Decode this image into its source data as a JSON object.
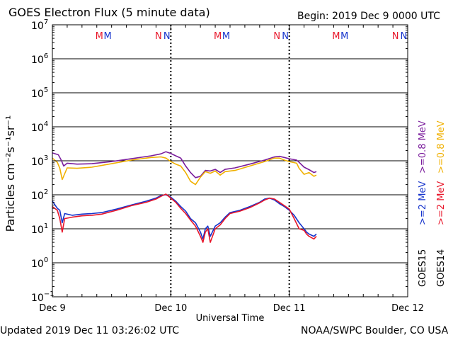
{
  "header": {
    "title": "GOES Electron Flux (5 minute data)",
    "begin": "Begin: 2019 Dec 9 0000 UTC"
  },
  "footer": {
    "updated": "Updated 2019 Dec 11 03:26:02 UTC",
    "credit": "NOAA/SWPC Boulder, CO USA"
  },
  "chart_data": {
    "type": "line",
    "title": "GOES Electron Flux (5 minute data)",
    "xlabel": "Universal Time",
    "ylabel": "Particles cm⁻²s⁻¹sr⁻¹",
    "yscale": "log",
    "ylim_exp": [
      -1,
      7
    ],
    "xlim_hours": [
      0,
      72
    ],
    "x_ticks": [
      {
        "hour": 0,
        "label": "Dec 9"
      },
      {
        "hour": 24,
        "label": "Dec 10"
      },
      {
        "hour": 48,
        "label": "Dec 11"
      },
      {
        "hour": 72,
        "label": "Dec 12"
      }
    ],
    "y_ticks": [
      {
        "exp": 7,
        "label": "7"
      },
      {
        "exp": 6,
        "label": "6"
      },
      {
        "exp": 5,
        "label": "5"
      },
      {
        "exp": 4,
        "label": "4"
      },
      {
        "exp": 3,
        "label": "3"
      },
      {
        "exp": 2,
        "label": "2"
      },
      {
        "exp": 1,
        "label": "1"
      },
      {
        "exp": 0,
        "label": "0"
      },
      {
        "exp": -1,
        "label": "−1"
      }
    ],
    "y_base": "10",
    "threshold": {
      "value": 1000,
      "style": "dashed"
    },
    "markers": [
      {
        "hour": 9.5,
        "label": "M",
        "color": "#e8162a"
      },
      {
        "hour": 11.2,
        "label": "M",
        "color": "#1533cc"
      },
      {
        "hour": 21.5,
        "label": "N",
        "color": "#e8162a"
      },
      {
        "hour": 23.2,
        "label": "N",
        "color": "#1533cc"
      },
      {
        "hour": 33.5,
        "label": "M",
        "color": "#e8162a"
      },
      {
        "hour": 35.2,
        "label": "M",
        "color": "#1533cc"
      },
      {
        "hour": 45.5,
        "label": "N",
        "color": "#e8162a"
      },
      {
        "hour": 47.2,
        "label": "N",
        "color": "#1533cc"
      },
      {
        "hour": 57.5,
        "label": "M",
        "color": "#e8162a"
      },
      {
        "hour": 59.2,
        "label": "M",
        "color": "#1533cc"
      },
      {
        "hour": 69.5,
        "label": "N",
        "color": "#e8162a"
      },
      {
        "hour": 71.2,
        "label": "N",
        "color": "#1533cc"
      }
    ],
    "legend": {
      "placement": "right",
      "label_15": "GOES15",
      "label_14": "GOES14",
      "entries": [
        {
          "text": ">=0.8 MeV",
          "color": "#f0b000",
          "satellite": "GOES14"
        },
        {
          "text": ">=0.8 MeV",
          "color": "#7a1d9c",
          "satellite": "GOES15"
        },
        {
          "text": ">=2 MeV",
          "color": "#e8162a",
          "satellite": "GOES14"
        },
        {
          "text": ">=2 MeV",
          "color": "#1533cc",
          "satellite": "GOES15"
        }
      ]
    },
    "series": [
      {
        "name": "GOES15 >=0.8 MeV",
        "color": "#7a1d9c",
        "points": [
          [
            0,
            1700
          ],
          [
            1.2,
            1500
          ],
          [
            1.8,
            1050
          ],
          [
            2.3,
            700
          ],
          [
            3,
            850
          ],
          [
            5,
            800
          ],
          [
            8,
            820
          ],
          [
            12,
            950
          ],
          [
            16,
            1150
          ],
          [
            20,
            1400
          ],
          [
            22,
            1600
          ],
          [
            23,
            1850
          ],
          [
            24,
            1650
          ],
          [
            25,
            1400
          ],
          [
            26,
            1200
          ],
          [
            27,
            700
          ],
          [
            28,
            450
          ],
          [
            29,
            320
          ],
          [
            30,
            350
          ],
          [
            31,
            520
          ],
          [
            32,
            500
          ],
          [
            33,
            560
          ],
          [
            34,
            450
          ],
          [
            35,
            560
          ],
          [
            37,
            620
          ],
          [
            40,
            800
          ],
          [
            43,
            1050
          ],
          [
            45,
            1300
          ],
          [
            46,
            1350
          ],
          [
            47,
            1250
          ],
          [
            48,
            1150
          ],
          [
            49.5,
            1050
          ],
          [
            50,
            900
          ],
          [
            51,
            650
          ],
          [
            52,
            550
          ],
          [
            53,
            450
          ],
          [
            53.5,
            480
          ]
        ]
      },
      {
        "name": "GOES14 >=0.8 MeV",
        "color": "#f0b000",
        "points": [
          [
            0,
            1200
          ],
          [
            1,
            900
          ],
          [
            1.5,
            600
          ],
          [
            2,
            280
          ],
          [
            3,
            620
          ],
          [
            5,
            600
          ],
          [
            8,
            650
          ],
          [
            12,
            820
          ],
          [
            16,
            1050
          ],
          [
            20,
            1250
          ],
          [
            22,
            1300
          ],
          [
            23,
            1200
          ],
          [
            24,
            950
          ],
          [
            25,
            800
          ],
          [
            26,
            700
          ],
          [
            27,
            450
          ],
          [
            28,
            250
          ],
          [
            29,
            200
          ],
          [
            30,
            330
          ],
          [
            31,
            480
          ],
          [
            32,
            430
          ],
          [
            33,
            500
          ],
          [
            34,
            380
          ],
          [
            35,
            480
          ],
          [
            37,
            520
          ],
          [
            40,
            700
          ],
          [
            43,
            950
          ],
          [
            45,
            1200
          ],
          [
            46,
            1200
          ],
          [
            47,
            1050
          ],
          [
            48,
            950
          ],
          [
            49.5,
            850
          ],
          [
            50,
            600
          ],
          [
            51,
            400
          ],
          [
            52,
            450
          ],
          [
            53,
            350
          ],
          [
            53.5,
            380
          ]
        ]
      },
      {
        "name": "GOES15 >=2 MeV",
        "color": "#1533cc",
        "points": [
          [
            0,
            65
          ],
          [
            1,
            40
          ],
          [
            1.5,
            35
          ],
          [
            2,
            15
          ],
          [
            2.5,
            28
          ],
          [
            4,
            25
          ],
          [
            6,
            27
          ],
          [
            8,
            28
          ],
          [
            10,
            30
          ],
          [
            13,
            38
          ],
          [
            16,
            50
          ],
          [
            19,
            65
          ],
          [
            21,
            80
          ],
          [
            22,
            95
          ],
          [
            23,
            100
          ],
          [
            24,
            85
          ],
          [
            25,
            65
          ],
          [
            26,
            45
          ],
          [
            27,
            33
          ],
          [
            28,
            20
          ],
          [
            29,
            15
          ],
          [
            30,
            8
          ],
          [
            30.5,
            5
          ],
          [
            31,
            10
          ],
          [
            31.5,
            12
          ],
          [
            32,
            6
          ],
          [
            33,
            12
          ],
          [
            34,
            15
          ],
          [
            35,
            22
          ],
          [
            36,
            30
          ],
          [
            38,
            35
          ],
          [
            40,
            45
          ],
          [
            42,
            60
          ],
          [
            43,
            75
          ],
          [
            44,
            80
          ],
          [
            45,
            70
          ],
          [
            46,
            55
          ],
          [
            47,
            45
          ],
          [
            48,
            35
          ],
          [
            49,
            25
          ],
          [
            50,
            15
          ],
          [
            51,
            10
          ],
          [
            51.5,
            8
          ],
          [
            52,
            7
          ],
          [
            53,
            6
          ],
          [
            53.5,
            7
          ]
        ]
      },
      {
        "name": "GOES14 >=2 MeV",
        "color": "#e8162a",
        "points": [
          [
            0,
            45
          ],
          [
            1,
            35
          ],
          [
            1.5,
            20
          ],
          [
            2,
            8
          ],
          [
            2.5,
            20
          ],
          [
            4,
            22
          ],
          [
            6,
            24
          ],
          [
            8,
            25
          ],
          [
            10,
            27
          ],
          [
            13,
            35
          ],
          [
            16,
            48
          ],
          [
            19,
            60
          ],
          [
            21,
            75
          ],
          [
            22,
            90
          ],
          [
            23,
            105
          ],
          [
            24,
            80
          ],
          [
            25,
            60
          ],
          [
            26,
            40
          ],
          [
            27,
            28
          ],
          [
            28,
            18
          ],
          [
            29,
            12
          ],
          [
            30,
            6
          ],
          [
            30.5,
            4
          ],
          [
            31,
            8
          ],
          [
            31.5,
            10
          ],
          [
            32,
            4
          ],
          [
            33,
            10
          ],
          [
            34,
            13
          ],
          [
            35,
            20
          ],
          [
            36,
            28
          ],
          [
            38,
            33
          ],
          [
            40,
            42
          ],
          [
            42,
            58
          ],
          [
            43,
            70
          ],
          [
            44,
            80
          ],
          [
            45,
            75
          ],
          [
            46,
            60
          ],
          [
            47,
            48
          ],
          [
            48,
            38
          ],
          [
            49,
            20
          ],
          [
            50,
            10
          ],
          [
            51,
            9
          ],
          [
            51.5,
            7
          ],
          [
            52,
            6
          ],
          [
            53,
            5
          ],
          [
            53.5,
            6
          ]
        ]
      }
    ]
  }
}
